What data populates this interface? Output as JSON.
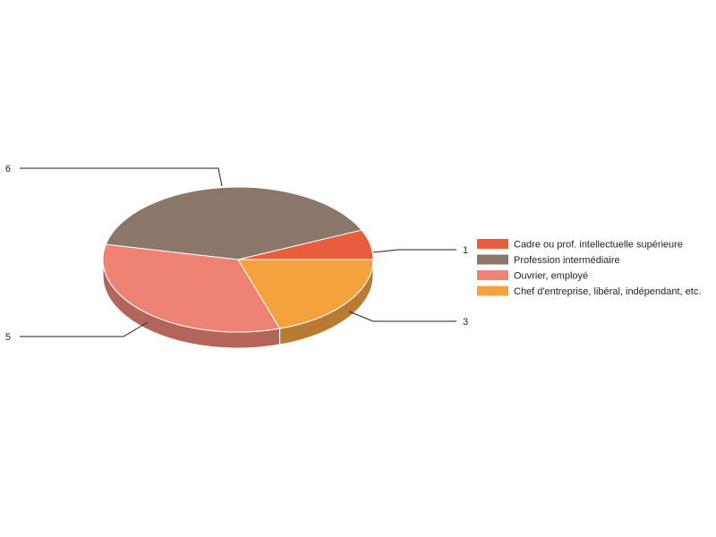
{
  "chart_data": {
    "type": "pie",
    "variant": "3d",
    "title": "",
    "legend_position": "right",
    "slices": [
      {
        "label": "Cadre ou prof. intellectuelle supérieure",
        "value": 1,
        "color": "#e95d3c",
        "side_color": "#b04a2f"
      },
      {
        "label": "Profession intermédiaire",
        "value": 6,
        "color": "#8a7769",
        "side_color": "#685a4f"
      },
      {
        "label": "Ouvrier, employé",
        "value": 5,
        "color": "#ee8375",
        "side_color": "#b3655a"
      },
      {
        "label": "Chef d'entreprise, libéral, indépendant, etc.",
        "value": 3,
        "color": "#f4a23e",
        "side_color": "#b87b31"
      }
    ],
    "data_labels": [
      "1",
      "6",
      "5",
      "3"
    ]
  }
}
